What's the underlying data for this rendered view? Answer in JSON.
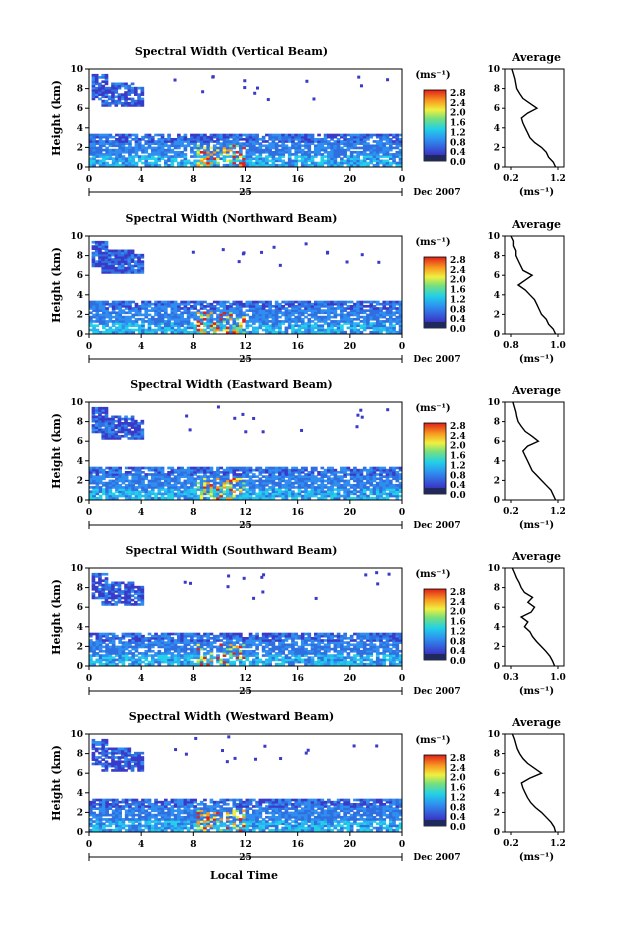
{
  "figure": {
    "footer_label": "Local Time",
    "date_label": "Dec 2007",
    "day_label": "25",
    "colorbar_unit": "(ms⁻¹)",
    "avg_title": "Average",
    "avg_xlabel": "(ms⁻¹)",
    "colorbar_ticks": [
      "2.8",
      "2.4",
      "2.0",
      "1.6",
      "1.2",
      "0.8",
      "0.4",
      "0.0"
    ],
    "colors": {
      "low": "#2a2a8c",
      "mid": "#3aa0e6",
      "high": "#e8301c",
      "dark_band": "#1f2a5a"
    }
  },
  "chart_data": [
    {
      "type": "heatmap",
      "title": "Spectral Width (Vertical Beam)",
      "ylabel": "Height (km)",
      "xlabel": "Local Time",
      "x_ticks": [
        "0",
        "4",
        "8",
        "12",
        "16",
        "20",
        "0"
      ],
      "y_ticks": [
        "0",
        "2",
        "4",
        "6",
        "8",
        "10"
      ],
      "xlim": [
        0,
        24
      ],
      "ylim": [
        0,
        10
      ],
      "colorbar": {
        "label": "(ms⁻¹)",
        "range": [
          0.0,
          2.8
        ]
      },
      "average": {
        "title": "Average",
        "xlabel": "(ms⁻¹)",
        "x_ticks": [
          "0.2",
          "1.2"
        ],
        "xlim": [
          0.2,
          1.2
        ],
        "heights": [
          0,
          0.5,
          1,
          1.5,
          2,
          2.5,
          3,
          3.5,
          4,
          4.5,
          5,
          5.5,
          6,
          6.5,
          7,
          7.5,
          8,
          8.5,
          9,
          9.5,
          10
        ],
        "values": [
          1.15,
          1.1,
          1.0,
          0.95,
          0.85,
          0.7,
          0.6,
          0.55,
          0.5,
          0.45,
          0.42,
          0.55,
          0.75,
          0.6,
          0.45,
          0.38,
          0.32,
          0.3,
          0.28,
          0.25,
          0.22
        ]
      }
    },
    {
      "type": "heatmap",
      "title": "Spectral Width (Northward Beam)",
      "ylabel": "Height (km)",
      "xlabel": "Local Time",
      "x_ticks": [
        "0",
        "4",
        "8",
        "12",
        "16",
        "20",
        "0"
      ],
      "y_ticks": [
        "0",
        "2",
        "4",
        "6",
        "8",
        "10"
      ],
      "xlim": [
        0,
        24
      ],
      "ylim": [
        0,
        10
      ],
      "colorbar": {
        "label": "(ms⁻¹)",
        "range": [
          0.0,
          2.8
        ]
      },
      "average": {
        "title": "Average",
        "xlabel": "(ms⁻¹)",
        "x_ticks": [
          "0.8",
          "1.0"
        ],
        "xlim": [
          0.8,
          1.0
        ],
        "heights": [
          0,
          0.5,
          1,
          1.5,
          2,
          2.5,
          3,
          3.5,
          4,
          4.5,
          5,
          5.5,
          6,
          6.5,
          7,
          7.5,
          8,
          8.5,
          9,
          9.5,
          10
        ],
        "values": [
          0.99,
          0.98,
          0.96,
          0.95,
          0.93,
          0.92,
          0.91,
          0.9,
          0.88,
          0.86,
          0.83,
          0.86,
          0.89,
          0.85,
          0.84,
          0.83,
          0.82,
          0.82,
          0.81,
          0.81,
          0.8
        ]
      }
    },
    {
      "type": "heatmap",
      "title": "Spectral Width (Eastward Beam)",
      "ylabel": "Height (km)",
      "xlabel": "Local Time",
      "x_ticks": [
        "0",
        "4",
        "8",
        "12",
        "16",
        "20",
        "0"
      ],
      "y_ticks": [
        "0",
        "2",
        "4",
        "6",
        "8",
        "10"
      ],
      "xlim": [
        0,
        24
      ],
      "ylim": [
        0,
        10
      ],
      "colorbar": {
        "label": "(ms⁻¹)",
        "range": [
          0.0,
          2.8
        ]
      },
      "average": {
        "title": "Average",
        "xlabel": "(ms⁻¹)",
        "x_ticks": [
          "0.2",
          "1.2"
        ],
        "xlim": [
          0.2,
          1.2
        ],
        "heights": [
          0,
          0.5,
          1,
          1.5,
          2,
          2.5,
          3,
          3.5,
          4,
          4.5,
          5,
          5.5,
          6,
          6.5,
          7,
          7.5,
          8,
          8.5,
          9,
          9.5,
          10
        ],
        "values": [
          1.15,
          1.1,
          1.05,
          0.95,
          0.85,
          0.75,
          0.65,
          0.6,
          0.55,
          0.5,
          0.45,
          0.55,
          0.78,
          0.65,
          0.5,
          0.42,
          0.35,
          0.32,
          0.3,
          0.27,
          0.24
        ]
      }
    },
    {
      "type": "heatmap",
      "title": "Spectral Width (Southward Beam)",
      "ylabel": "Height (km)",
      "xlabel": "Local Time",
      "x_ticks": [
        "0",
        "4",
        "8",
        "12",
        "16",
        "20",
        "0"
      ],
      "y_ticks": [
        "0",
        "2",
        "4",
        "6",
        "8",
        "10"
      ],
      "xlim": [
        0,
        24
      ],
      "ylim": [
        0,
        10
      ],
      "colorbar": {
        "label": "(ms⁻¹)",
        "range": [
          0.0,
          2.8
        ]
      },
      "average": {
        "title": "Average",
        "xlabel": "(ms⁻¹)",
        "x_ticks": [
          "0.3",
          "1.0"
        ],
        "xlim": [
          0.3,
          1.0
        ],
        "heights": [
          0,
          0.5,
          1,
          1.5,
          2,
          2.5,
          3,
          3.5,
          4,
          4.5,
          5,
          5.5,
          6,
          6.5,
          7,
          7.5,
          8,
          8.5,
          9,
          9.5,
          10
        ],
        "values": [
          0.95,
          0.92,
          0.88,
          0.82,
          0.75,
          0.68,
          0.62,
          0.58,
          0.5,
          0.55,
          0.45,
          0.6,
          0.65,
          0.55,
          0.62,
          0.5,
          0.45,
          0.42,
          0.38,
          0.35,
          0.32
        ]
      }
    },
    {
      "type": "heatmap",
      "title": "Spectral Width (Westward Beam)",
      "ylabel": "Height (km)",
      "xlabel": "Local Time",
      "x_ticks": [
        "0",
        "4",
        "8",
        "12",
        "16",
        "20",
        "0"
      ],
      "y_ticks": [
        "0",
        "2",
        "4",
        "6",
        "8",
        "10"
      ],
      "xlim": [
        0,
        24
      ],
      "ylim": [
        0,
        10
      ],
      "colorbar": {
        "label": "(ms⁻¹)",
        "range": [
          0.0,
          2.8
        ]
      },
      "average": {
        "title": "Average",
        "xlabel": "(ms⁻¹)",
        "x_ticks": [
          "0.2",
          "1.2"
        ],
        "xlim": [
          0.2,
          1.2
        ],
        "heights": [
          0,
          0.5,
          1,
          1.5,
          2,
          2.5,
          3,
          3.5,
          4,
          4.5,
          5,
          5.5,
          6,
          6.5,
          7,
          7.5,
          8,
          8.5,
          9,
          9.5,
          10
        ],
        "values": [
          1.15,
          1.12,
          1.05,
          0.95,
          0.85,
          0.72,
          0.62,
          0.55,
          0.5,
          0.45,
          0.42,
          0.6,
          0.85,
          0.7,
          0.55,
          0.45,
          0.38,
          0.33,
          0.3,
          0.27,
          0.23
        ]
      }
    }
  ]
}
